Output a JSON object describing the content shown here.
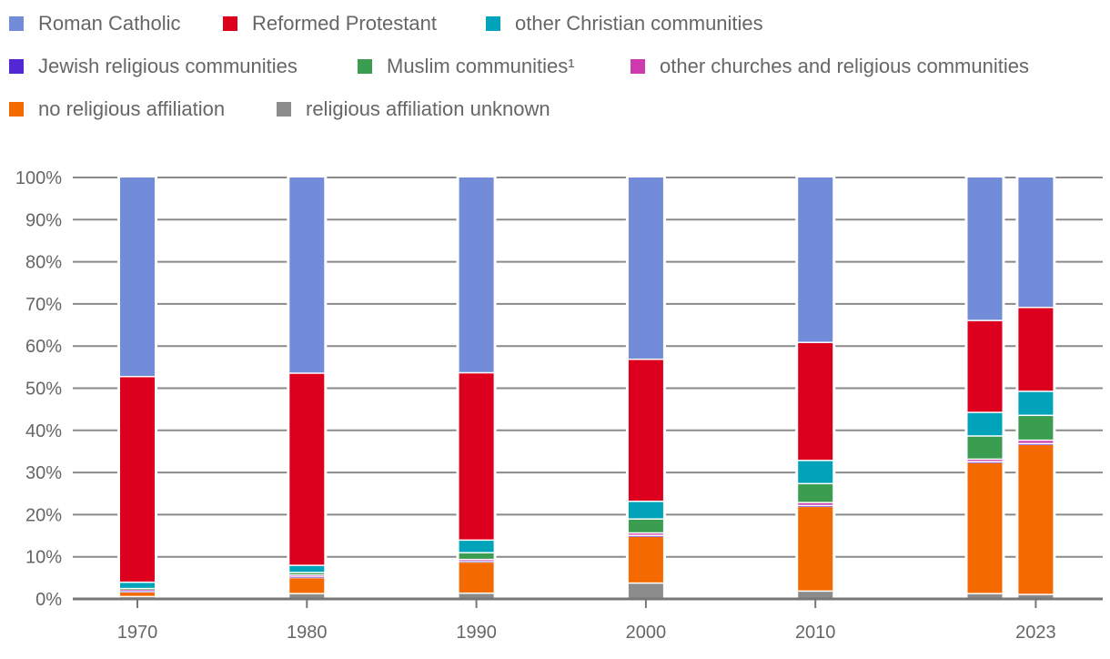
{
  "chart_data": {
    "type": "bar",
    "stacked": true,
    "normalized": true,
    "x": [
      1970,
      1980,
      1990,
      2000,
      2010,
      2020,
      2023
    ],
    "x_tick_labels": [
      "1970",
      "1980",
      "1990",
      "2000",
      "2010",
      "2023"
    ],
    "x_tick_values": [
      1970,
      1980,
      1990,
      2000,
      2010,
      2023
    ],
    "ylim": [
      0,
      100
    ],
    "y_tick_labels": [
      "0%",
      "10%",
      "20%",
      "30%",
      "40%",
      "50%",
      "60%",
      "70%",
      "80%",
      "90%",
      "100%"
    ],
    "grid": true,
    "legend_position": "top",
    "legend": [
      {
        "key": "rc",
        "label": "Roman Catholic"
      },
      {
        "key": "ref",
        "label": "Reformed Protestant"
      },
      {
        "key": "oc",
        "label": "other Christian communities"
      },
      {
        "key": "jew",
        "label": "Jewish religious communities"
      },
      {
        "key": "mus",
        "label": "Muslim communities¹"
      },
      {
        "key": "oth",
        "label": "other churches and religious communities"
      },
      {
        "key": "none",
        "label": "no religious affiliation"
      },
      {
        "key": "unk",
        "label": "religious affiliation unknown"
      }
    ],
    "series": [
      {
        "key": "unk",
        "name": "religious affiliation unknown",
        "color": "#8c8c8c",
        "values": [
          0.4,
          1.1,
          1.2,
          3.6,
          1.7,
          1.1,
          0.9
        ]
      },
      {
        "key": "none",
        "name": "no religious affiliation",
        "color": "#f46a00",
        "values": [
          1.1,
          3.8,
          7.4,
          11.1,
          20.1,
          31.1,
          35.6
        ]
      },
      {
        "key": "jew",
        "name": "Jewish religious communities",
        "color": "#5228d4",
        "values": [
          0.3,
          0.3,
          0.3,
          0.2,
          0.2,
          0.2,
          0.2
        ]
      },
      {
        "key": "oth",
        "name": "other churches and religious communities",
        "color": "#cc3aad",
        "values": [
          0.3,
          0.3,
          0.3,
          0.6,
          0.7,
          0.6,
          0.8
        ]
      },
      {
        "key": "mus",
        "name": "Muslim communities¹",
        "color": "#3a9d50",
        "values": [
          0.2,
          0.6,
          1.6,
          3.3,
          4.5,
          5.5,
          5.9
        ]
      },
      {
        "key": "oc",
        "name": "other Christian communities",
        "color": "#00a3b9",
        "values": [
          1.5,
          1.7,
          3.0,
          4.2,
          5.5,
          5.6,
          5.7
        ]
      },
      {
        "key": "ref",
        "name": "Reformed Protestant",
        "color": "#dc001e",
        "values": [
          48.8,
          45.6,
          39.7,
          33.7,
          28.0,
          21.8,
          19.9
        ]
      },
      {
        "key": "rc",
        "name": "Roman Catholic",
        "color": "#738cd9",
        "values": [
          47.4,
          46.6,
          46.5,
          43.3,
          39.3,
          34.1,
          31.0
        ]
      }
    ]
  }
}
